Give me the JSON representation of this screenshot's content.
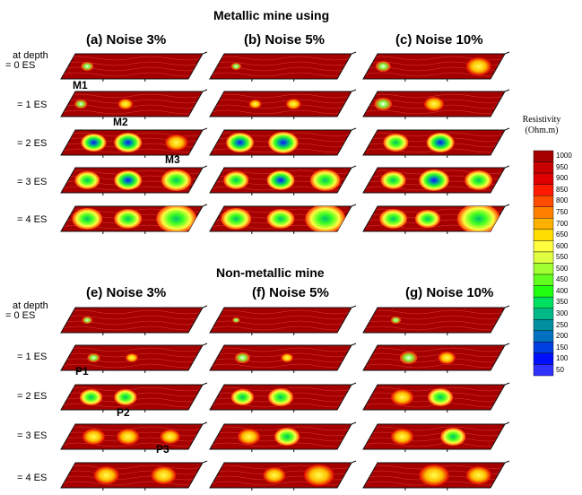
{
  "sections": [
    {
      "title": "Metallic mine using",
      "columns": [
        "(a) Noise 3%",
        "(b) Noise 5%",
        "(c) Noise 10%"
      ],
      "depth_header": [
        "at depth",
        "= 0 ES"
      ],
      "depths": [
        "= 1 ES",
        "= 2 ES",
        "= 3 ES",
        "= 4 ES"
      ],
      "markers": [
        "M1",
        "M2",
        "M3"
      ]
    },
    {
      "title": "Non-metallic mine",
      "columns": [
        "(e) Noise 3%",
        "(f) Noise 5%",
        "(g) Noise 10%"
      ],
      "depth_header": [
        "at depth",
        "= 0 ES"
      ],
      "depths": [
        "= 1 ES",
        "= 2 ES",
        "= 3 ES",
        "= 4 ES"
      ],
      "markers": [
        "P1",
        "P2",
        "P3"
      ]
    }
  ],
  "colorbar": {
    "title": [
      "Resistivity",
      "(Ohm.m)"
    ],
    "levels": [
      "1000",
      "950",
      "900",
      "850",
      "800",
      "750",
      "700",
      "650",
      "600",
      "550",
      "500",
      "450",
      "400",
      "350",
      "300",
      "250",
      "200",
      "150",
      "100",
      "50"
    ],
    "colors": [
      "#a50000",
      "#c80000",
      "#e00000",
      "#ff1a00",
      "#ff4d00",
      "#ff8000",
      "#ffb000",
      "#ffdd00",
      "#ffff40",
      "#dfff40",
      "#a0ff30",
      "#60ff20",
      "#20ff10",
      "#00e060",
      "#00b888",
      "#0090a0",
      "#0070c0",
      "#0040e0",
      "#0010ff",
      "#3030ff"
    ]
  }
}
